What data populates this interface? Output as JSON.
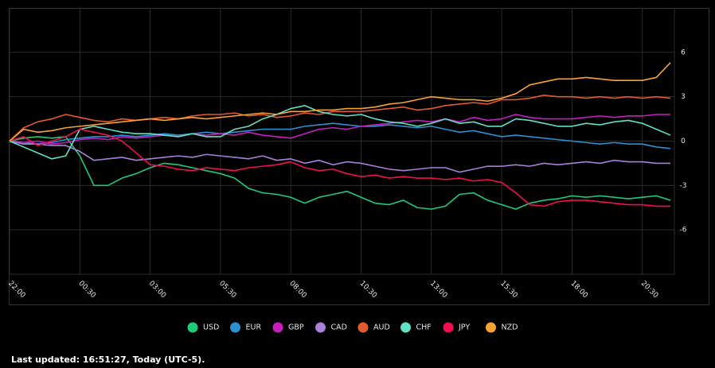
{
  "chart_data": {
    "type": "line",
    "categories": [
      "22:00",
      null,
      null,
      null,
      null,
      "00:30",
      null,
      null,
      null,
      null,
      "03:00",
      null,
      null,
      null,
      null,
      "05:30",
      null,
      null,
      null,
      null,
      "08:00",
      null,
      null,
      null,
      null,
      "10:30",
      null,
      null,
      null,
      null,
      "13:00",
      null,
      null,
      null,
      null,
      "15:30",
      null,
      null,
      null,
      null,
      "18:00",
      null,
      null,
      null,
      null,
      "20:30",
      null,
      null
    ],
    "ylim": [
      -9,
      9
    ],
    "yticks": [
      -6,
      -3,
      0,
      3,
      6
    ],
    "grid": true,
    "series": [
      {
        "name": "USD",
        "color": "#1ecb7a",
        "values": [
          0,
          0.2,
          0.3,
          0.2,
          0.3,
          -1.0,
          -3.0,
          -3.0,
          -2.5,
          -2.2,
          -1.8,
          -1.5,
          -1.6,
          -1.8,
          -2.0,
          -2.2,
          -2.5,
          -3.2,
          -3.5,
          -3.6,
          -3.8,
          -4.2,
          -3.8,
          -3.6,
          -3.4,
          -3.8,
          -4.2,
          -4.3,
          -4.0,
          -4.5,
          -4.6,
          -4.4,
          -3.6,
          -3.5,
          -4.0,
          -4.3,
          -4.6,
          -4.2,
          -4.0,
          -3.9,
          -3.7,
          -3.8,
          -3.7,
          -3.8,
          -3.9,
          -3.8,
          -3.7,
          -4.0
        ]
      },
      {
        "name": "EUR",
        "color": "#2b8fd0",
        "values": [
          0,
          -0.1,
          -0.2,
          -0.1,
          0.1,
          0.2,
          0.3,
          0.3,
          0.4,
          0.3,
          0.4,
          0.5,
          0.4,
          0.5,
          0.6,
          0.5,
          0.6,
          0.7,
          0.8,
          0.8,
          0.8,
          1.0,
          1.1,
          1.2,
          1.1,
          1.0,
          1.0,
          1.1,
          1.0,
          0.9,
          1.0,
          0.8,
          0.6,
          0.7,
          0.5,
          0.3,
          0.4,
          0.3,
          0.2,
          0.1,
          0.0,
          -0.1,
          -0.2,
          -0.1,
          -0.2,
          -0.2,
          -0.4,
          -0.5
        ]
      },
      {
        "name": "GBP",
        "color": "#c51fc0",
        "values": [
          0,
          -0.1,
          0,
          -0.2,
          -0.1,
          0.1,
          0.2,
          0.1,
          0.3,
          0.2,
          0.3,
          0.4,
          0.3,
          0.5,
          0.4,
          0.5,
          0.4,
          0.6,
          0.4,
          0.3,
          0.2,
          0.5,
          0.8,
          0.9,
          0.8,
          1.0,
          1.1,
          1.2,
          1.3,
          1.4,
          1.3,
          1.5,
          1.3,
          1.6,
          1.4,
          1.5,
          1.8,
          1.6,
          1.5,
          1.5,
          1.5,
          1.6,
          1.7,
          1.6,
          1.7,
          1.7,
          1.8,
          1.8
        ]
      },
      {
        "name": "CAD",
        "color": "#a880d8",
        "values": [
          0,
          -0.2,
          -0.2,
          -0.3,
          -0.3,
          -0.7,
          -1.3,
          -1.2,
          -1.1,
          -1.3,
          -1.2,
          -1.1,
          -1.0,
          -1.1,
          -0.9,
          -1.0,
          -1.1,
          -1.2,
          -1.0,
          -1.3,
          -1.2,
          -1.5,
          -1.3,
          -1.6,
          -1.4,
          -1.5,
          -1.7,
          -1.9,
          -2.0,
          -1.9,
          -1.8,
          -1.8,
          -2.1,
          -1.9,
          -1.7,
          -1.7,
          -1.6,
          -1.7,
          -1.5,
          -1.6,
          -1.5,
          -1.4,
          -1.5,
          -1.3,
          -1.4,
          -1.4,
          -1.5,
          -1.5
        ]
      },
      {
        "name": "AUD",
        "color": "#e25a30",
        "values": [
          0,
          0.9,
          1.3,
          1.5,
          1.8,
          1.6,
          1.4,
          1.3,
          1.5,
          1.4,
          1.5,
          1.6,
          1.5,
          1.7,
          1.8,
          1.8,
          1.9,
          1.7,
          1.8,
          1.6,
          1.7,
          1.9,
          1.8,
          2.0,
          2.0,
          2.0,
          2.1,
          2.2,
          2.3,
          2.1,
          2.2,
          2.4,
          2.5,
          2.6,
          2.5,
          2.8,
          2.8,
          2.9,
          3.1,
          3.0,
          3.0,
          2.9,
          3.0,
          2.9,
          3.0,
          2.9,
          3.0,
          2.9
        ]
      },
      {
        "name": "CHF",
        "color": "#60e0c4",
        "values": [
          0,
          -0.4,
          -0.8,
          -1.2,
          -1.0,
          0.8,
          1.0,
          0.8,
          0.6,
          0.5,
          0.5,
          0.4,
          0.3,
          0.5,
          0.3,
          0.3,
          0.8,
          1.0,
          1.5,
          1.8,
          2.2,
          2.4,
          2.0,
          1.8,
          1.7,
          1.8,
          1.5,
          1.3,
          1.2,
          1.0,
          1.2,
          1.5,
          1.2,
          1.3,
          1.0,
          1.0,
          1.5,
          1.4,
          1.2,
          1.0,
          1.0,
          1.2,
          1.1,
          1.3,
          1.4,
          1.2,
          0.8,
          0.4
        ]
      },
      {
        "name": "JPY",
        "color": "#f01050",
        "values": [
          0,
          0.3,
          -0.3,
          0,
          0.3,
          0.8,
          0.6,
          0.4,
          0.0,
          -0.8,
          -1.6,
          -1.7,
          -1.9,
          -2.0,
          -1.8,
          -1.9,
          -2.0,
          -1.8,
          -1.7,
          -1.6,
          -1.4,
          -1.8,
          -2.0,
          -1.9,
          -2.2,
          -2.4,
          -2.3,
          -2.5,
          -2.4,
          -2.5,
          -2.5,
          -2.6,
          -2.5,
          -2.7,
          -2.6,
          -2.8,
          -3.5,
          -4.3,
          -4.4,
          -4.1,
          -4.0,
          -4.0,
          -4.1,
          -4.2,
          -4.3,
          -4.3,
          -4.4,
          -4.4
        ]
      },
      {
        "name": "NZD",
        "color": "#f7a232",
        "values": [
          0,
          0.8,
          0.6,
          0.7,
          0.9,
          1.0,
          1.1,
          1.2,
          1.3,
          1.4,
          1.5,
          1.4,
          1.5,
          1.6,
          1.5,
          1.6,
          1.7,
          1.8,
          1.9,
          1.8,
          2.0,
          2.0,
          2.1,
          2.1,
          2.2,
          2.2,
          2.3,
          2.5,
          2.6,
          2.8,
          3.0,
          2.9,
          2.8,
          2.8,
          2.7,
          2.9,
          3.2,
          3.8,
          4.0,
          4.2,
          4.2,
          4.3,
          4.2,
          4.1,
          4.1,
          4.1,
          4.3,
          5.3
        ]
      }
    ]
  },
  "footer": "Last updated: 16:51:27, Today (UTC-5)."
}
